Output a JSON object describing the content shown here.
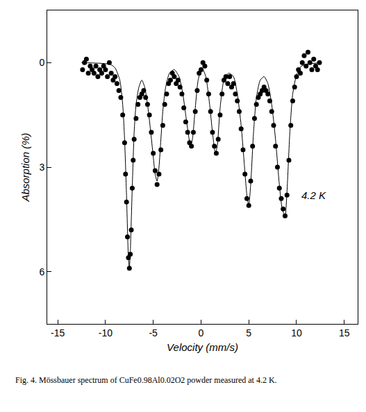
{
  "chart_data": {
    "type": "scatter",
    "caption": "Fig. 4. Mössbauer spectrum of CuFe0.98Al0.02O2 powder measured at 4.2 K.",
    "x_label": "Velocity (mm/s)",
    "y_label": "Absorption (%)",
    "xlim": [
      -16.1,
      16.4
    ],
    "xticks": [
      -15,
      -10,
      -5,
      0,
      5,
      10,
      15
    ],
    "ylim": [
      7.5,
      -1.5
    ],
    "yticks": [
      0,
      3,
      6
    ],
    "grid": false,
    "annotations": [
      {
        "text": "4.2 K",
        "x": 11.8,
        "y": 3.8
      }
    ],
    "series": [
      {
        "type": "scatter",
        "marker": "circle",
        "color": "#000000",
        "x": [
          -12.4,
          -12.2,
          -12.0,
          -11.8,
          -11.6,
          -11.4,
          -11.2,
          -11.0,
          -10.8,
          -10.6,
          -10.4,
          -10.2,
          -10.0,
          -9.8,
          -9.6,
          -9.4,
          -9.2,
          -9.0,
          -8.8,
          -8.6,
          -8.4,
          -8.2,
          -8.0,
          -7.9,
          -7.8,
          -7.7,
          -7.6,
          -7.5,
          -7.4,
          -7.3,
          -7.2,
          -7.1,
          -7.0,
          -6.8,
          -6.6,
          -6.4,
          -6.2,
          -6.0,
          -5.8,
          -5.6,
          -5.4,
          -5.2,
          -5.0,
          -4.8,
          -4.6,
          -4.4,
          -4.2,
          -4.0,
          -3.8,
          -3.6,
          -3.4,
          -3.2,
          -3.0,
          -2.8,
          -2.6,
          -2.4,
          -2.2,
          -2.0,
          -1.8,
          -1.6,
          -1.4,
          -1.2,
          -1.0,
          -0.8,
          -0.6,
          -0.4,
          -0.2,
          0.0,
          0.2,
          0.4,
          0.6,
          0.8,
          1.0,
          1.2,
          1.4,
          1.6,
          1.8,
          2.0,
          2.2,
          2.4,
          2.6,
          2.8,
          3.0,
          3.2,
          3.4,
          3.6,
          3.8,
          4.0,
          4.2,
          4.4,
          4.6,
          4.8,
          5.0,
          5.2,
          5.4,
          5.6,
          5.8,
          6.0,
          6.2,
          6.4,
          6.6,
          6.8,
          7.0,
          7.2,
          7.4,
          7.6,
          7.8,
          8.0,
          8.2,
          8.4,
          8.6,
          8.8,
          9.0,
          9.2,
          9.4,
          9.6,
          9.8,
          10.0,
          10.2,
          10.4,
          10.6,
          10.8,
          11.0,
          11.2,
          11.4,
          11.6,
          11.8,
          12.0,
          12.2,
          12.4
        ],
        "values": [
          0.2,
          0.0,
          -0.1,
          0.3,
          0.1,
          0.2,
          0.3,
          0.1,
          0.4,
          0.2,
          0.3,
          0.1,
          0.2,
          0.4,
          0.0,
          0.3,
          0.5,
          0.4,
          0.6,
          0.8,
          1.0,
          1.5,
          2.3,
          3.2,
          4.0,
          5.0,
          5.6,
          5.9,
          5.5,
          4.8,
          3.6,
          2.8,
          2.2,
          1.6,
          1.2,
          1.0,
          0.9,
          0.8,
          1.0,
          1.2,
          1.5,
          2.0,
          2.6,
          3.1,
          3.5,
          3.2,
          2.5,
          1.8,
          1.2,
          0.9,
          0.6,
          0.5,
          0.3,
          0.4,
          0.6,
          0.5,
          0.7,
          0.9,
          1.3,
          1.7,
          2.0,
          2.3,
          2.4,
          2.0,
          1.4,
          0.8,
          0.3,
          0.2,
          0.0,
          0.1,
          0.5,
          0.9,
          1.4,
          2.0,
          2.4,
          2.6,
          2.2,
          1.5,
          0.9,
          0.5,
          0.4,
          0.6,
          0.4,
          0.7,
          0.6,
          0.9,
          1.1,
          1.4,
          1.9,
          2.5,
          3.2,
          3.9,
          4.1,
          3.4,
          2.4,
          1.6,
          1.2,
          1.0,
          0.9,
          0.8,
          0.7,
          0.8,
          0.9,
          1.1,
          1.4,
          1.8,
          2.4,
          3.0,
          3.6,
          3.9,
          4.2,
          4.4,
          3.8,
          2.8,
          1.8,
          1.1,
          0.7,
          0.4,
          0.2,
          0.3,
          0.0,
          -0.2,
          0.1,
          -0.3,
          0.0,
          0.2,
          -0.1,
          0.1,
          0.2,
          0.0
        ]
      },
      {
        "type": "line",
        "line_style": "solid",
        "color": "#000000",
        "x": [
          -12.5,
          -9.5,
          -9.0,
          -8.5,
          -8.2,
          -8.0,
          -7.8,
          -7.6,
          -7.5,
          -7.4,
          -7.2,
          -7.0,
          -6.8,
          -6.5,
          -6.2,
          -5.9,
          -5.6,
          -5.3,
          -5.0,
          -4.8,
          -4.6,
          -4.4,
          -4.2,
          -4.0,
          -3.7,
          -3.3,
          -2.8,
          -2.3,
          -1.9,
          -1.6,
          -1.3,
          -1.1,
          -0.9,
          -0.6,
          -0.3,
          0.1,
          0.5,
          0.9,
          1.2,
          1.5,
          1.7,
          2.0,
          2.4,
          2.9,
          3.4,
          3.8,
          4.2,
          4.5,
          4.8,
          5.0,
          5.2,
          5.5,
          5.8,
          6.2,
          6.6,
          7.0,
          7.4,
          7.8,
          8.2,
          8.5,
          8.8,
          9.0,
          9.3,
          9.6,
          10.0,
          10.5,
          11.0,
          12.5
        ],
        "values": [
          0,
          0.05,
          0.15,
          0.5,
          1.2,
          2.2,
          3.8,
          5.6,
          5.9,
          5.4,
          3.6,
          2.0,
          1.2,
          0.7,
          0.5,
          0.7,
          1.2,
          1.9,
          2.7,
          3.2,
          3.4,
          3.0,
          2.2,
          1.4,
          0.7,
          0.3,
          0.2,
          0.4,
          0.9,
          1.5,
          2.1,
          2.4,
          2.2,
          1.3,
          0.5,
          0.15,
          0.4,
          1.2,
          2.0,
          2.6,
          2.4,
          1.3,
          0.5,
          0.3,
          0.4,
          0.9,
          1.8,
          2.8,
          3.8,
          4.1,
          3.5,
          2.0,
          1.0,
          0.5,
          0.4,
          0.6,
          1.2,
          2.2,
          3.5,
          4.2,
          4.4,
          3.7,
          2.0,
          0.9,
          0.35,
          0.1,
          0.05,
          0
        ]
      }
    ]
  }
}
